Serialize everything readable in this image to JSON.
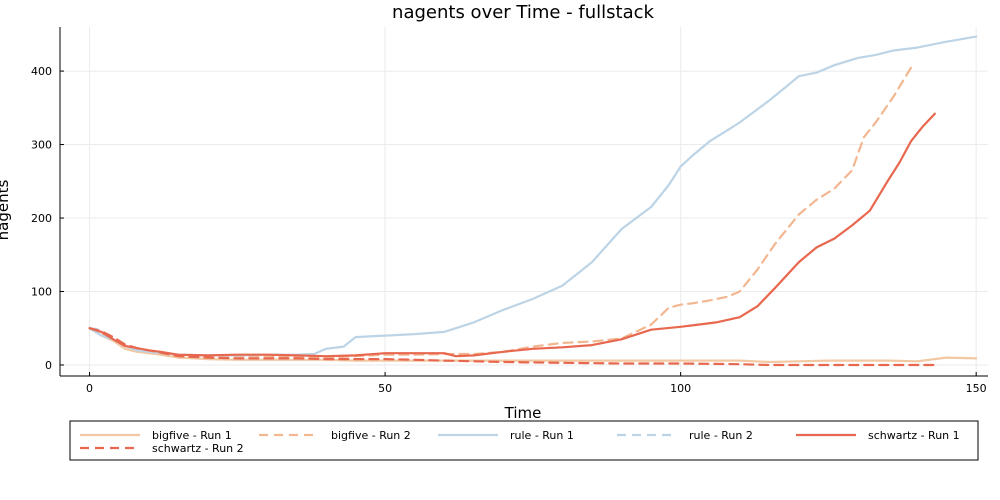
{
  "chart_data": {
    "type": "line",
    "title": "nagents over Time - fullstack",
    "xlabel": "Time",
    "ylabel": "nagents",
    "xlim": [
      -5,
      152
    ],
    "ylim": [
      -15,
      460
    ],
    "xticks": [
      0,
      50,
      100,
      150
    ],
    "yticks": [
      0,
      100,
      200,
      300,
      400
    ],
    "grid": true,
    "legend_position": "bottom",
    "series": [
      {
        "name": "bigfive - Run 1",
        "color": "#f2c8a3",
        "dash": "solid",
        "x": [
          0,
          2,
          4,
          6,
          8,
          10,
          12,
          15,
          18,
          20,
          25,
          30,
          35,
          40,
          45,
          50,
          55,
          60,
          65,
          70,
          80,
          90,
          100,
          110,
          115,
          120,
          125,
          130,
          135,
          140,
          145,
          150
        ],
        "y": [
          50,
          40,
          33,
          22,
          18,
          16,
          14,
          10,
          9,
          8,
          7,
          7,
          7,
          7,
          6,
          6,
          6,
          6,
          6,
          6,
          6,
          6,
          6,
          6,
          4,
          5,
          6,
          6,
          6,
          5,
          10,
          9
        ]
      },
      {
        "name": "bigfive - Run 2",
        "color": "#f2b790",
        "dash": "dashed",
        "x": [
          0,
          2,
          4,
          6,
          8,
          10,
          15,
          20,
          25,
          30,
          35,
          40,
          45,
          50,
          55,
          60,
          65,
          70,
          75,
          80,
          85,
          90,
          95,
          98,
          100,
          102,
          105,
          108,
          110,
          113,
          116,
          120,
          123,
          126,
          129,
          131,
          133,
          136,
          139
        ],
        "y": [
          50,
          42,
          35,
          26,
          22,
          18,
          13,
          12,
          12,
          12,
          11,
          10,
          12,
          14,
          14,
          15,
          15,
          18,
          25,
          30,
          32,
          36,
          55,
          78,
          82,
          84,
          88,
          93,
          100,
          130,
          165,
          205,
          225,
          240,
          265,
          310,
          330,
          365,
          405
        ]
      },
      {
        "name": "rule - Run 1",
        "color": "#bcd4e6",
        "dash": "solid",
        "x": [
          0,
          2,
          4,
          6,
          8,
          10,
          15,
          20,
          25,
          30,
          35,
          38,
          40,
          43,
          45,
          50,
          55,
          60,
          65,
          70,
          75,
          80,
          85,
          90,
          95,
          98,
          100,
          102,
          105,
          108,
          110,
          115,
          120,
          123,
          126,
          130,
          133,
          136,
          140,
          145,
          150
        ],
        "y": [
          50,
          40,
          35,
          26,
          20,
          18,
          14,
          13,
          13,
          14,
          14,
          15,
          22,
          25,
          38,
          40,
          42,
          45,
          58,
          75,
          90,
          108,
          140,
          185,
          215,
          245,
          270,
          285,
          305,
          320,
          330,
          360,
          393,
          398,
          408,
          418,
          422,
          428,
          432,
          440,
          447
        ]
      },
      {
        "name": "rule - Run 2",
        "color": "#bcd4e6",
        "dash": "dashed",
        "x": [
          0,
          1,
          2
        ],
        "y": [
          50,
          49,
          47
        ]
      },
      {
        "name": "schwartz - Run 1",
        "color": "#e8674f",
        "dash": "solid",
        "x": [
          0,
          2,
          4,
          6,
          8,
          10,
          12,
          15,
          20,
          25,
          30,
          35,
          40,
          45,
          50,
          55,
          60,
          62,
          65,
          70,
          75,
          80,
          85,
          90,
          95,
          100,
          103,
          106,
          110,
          113,
          116,
          120,
          123,
          126,
          129,
          132,
          135,
          137,
          139,
          141,
          143
        ],
        "y": [
          50,
          45,
          35,
          26,
          23,
          20,
          18,
          14,
          13,
          14,
          14,
          13,
          12,
          13,
          16,
          16,
          16,
          12,
          13,
          18,
          22,
          24,
          27,
          35,
          48,
          52,
          55,
          58,
          65,
          80,
          105,
          140,
          160,
          172,
          190,
          210,
          250,
          275,
          305,
          325,
          342
        ]
      },
      {
        "name": "schwartz - Run 2",
        "color": "#e8674f",
        "dash": "dashed",
        "x": [
          0,
          2,
          4,
          6,
          8,
          10,
          12,
          15,
          20,
          25,
          30,
          35,
          40,
          45,
          50,
          55,
          60,
          70,
          80,
          90,
          100,
          110,
          115,
          120,
          130,
          140,
          143
        ],
        "y": [
          50,
          46,
          38,
          28,
          23,
          20,
          17,
          12,
          10,
          9,
          9,
          9,
          8,
          8,
          8,
          7,
          6,
          4,
          3,
          2,
          2,
          1,
          0,
          0,
          0,
          0,
          0
        ]
      }
    ]
  }
}
